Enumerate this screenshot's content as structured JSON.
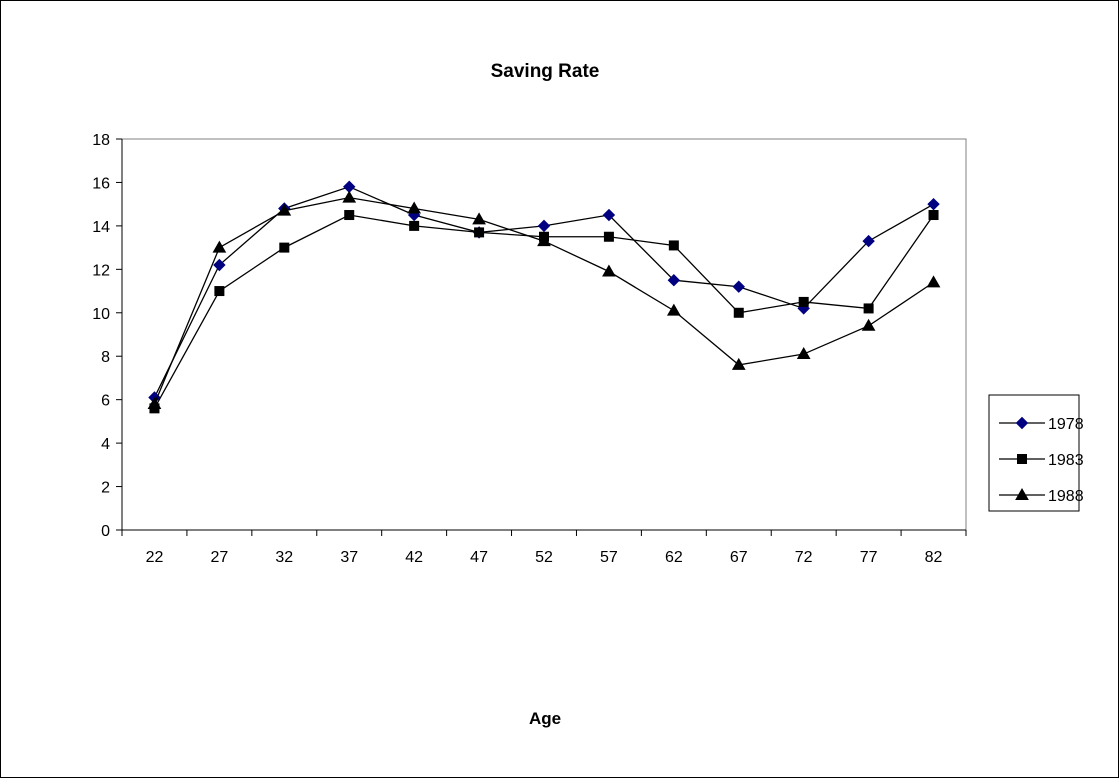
{
  "chart_data": {
    "type": "line",
    "title": "Saving Rate",
    "xlabel": "Age",
    "ylabel": "",
    "x": [
      22,
      27,
      32,
      37,
      42,
      47,
      52,
      57,
      62,
      67,
      72,
      77,
      82
    ],
    "x_tick_labels": [
      "22",
      "27",
      "32",
      "37",
      "42",
      "47",
      "52",
      "57",
      "62",
      "67",
      "72",
      "77",
      "82"
    ],
    "ylim": [
      0,
      18
    ],
    "y_ticks": [
      0,
      2,
      4,
      6,
      8,
      10,
      12,
      14,
      16,
      18
    ],
    "y_tick_labels": [
      "0",
      "2",
      "4",
      "6",
      "8",
      "10",
      "12",
      "14",
      "16",
      "18"
    ],
    "grid": false,
    "legend_position": "right",
    "series": [
      {
        "name": "1978",
        "marker": "diamond",
        "color": "#000080",
        "values": [
          6.1,
          12.2,
          14.8,
          15.8,
          14.5,
          13.7,
          14.0,
          14.5,
          11.5,
          11.2,
          10.2,
          13.3,
          15.0
        ]
      },
      {
        "name": "1983",
        "marker": "square",
        "color": "#000000",
        "values": [
          5.6,
          11.0,
          13.0,
          14.5,
          14.0,
          13.7,
          13.5,
          13.5,
          13.1,
          10.0,
          10.5,
          10.2,
          14.5
        ]
      },
      {
        "name": "1988",
        "marker": "triangle",
        "color": "#000000",
        "values": [
          5.8,
          13.0,
          14.7,
          15.3,
          14.8,
          14.3,
          13.3,
          11.9,
          10.1,
          7.6,
          8.1,
          9.4,
          11.4
        ]
      }
    ]
  }
}
